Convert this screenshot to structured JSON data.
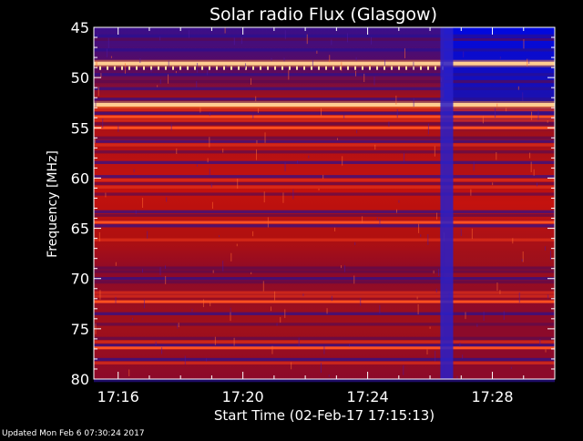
{
  "chart_data": {
    "type": "heatmap",
    "title": "Solar radio Flux (Glasgow)",
    "xlabel": "Start Time (02-Feb-17 17:15:13)",
    "ylabel": "Frequency [MHz]",
    "x_tick_labels": [
      "17:16",
      "17:20",
      "17:24",
      "17:28"
    ],
    "x_tick_minutes": [
      16,
      20,
      24,
      28
    ],
    "x_range_minutes": [
      15.22,
      30.0
    ],
    "y_tick_labels": [
      "45",
      "50",
      "55",
      "60",
      "65",
      "70",
      "75",
      "80"
    ],
    "y_tick_values": [
      45,
      50,
      55,
      60,
      65,
      70,
      75,
      80
    ],
    "y_range": [
      45,
      80
    ],
    "data_change_time_minutes": 26.45,
    "bright_bands_mhz": [
      48.6,
      52.7,
      53.9,
      55.0,
      64.4,
      72.3,
      76.9
    ],
    "colormap": [
      "#0000ff",
      "#3a0f8a",
      "#8c0a2a",
      "#c4120e",
      "#ff3a10",
      "#ffb040",
      "#ffffe0"
    ]
  },
  "footer": {
    "updated": "Updated Mon Feb  6 07:30:24 2017"
  }
}
